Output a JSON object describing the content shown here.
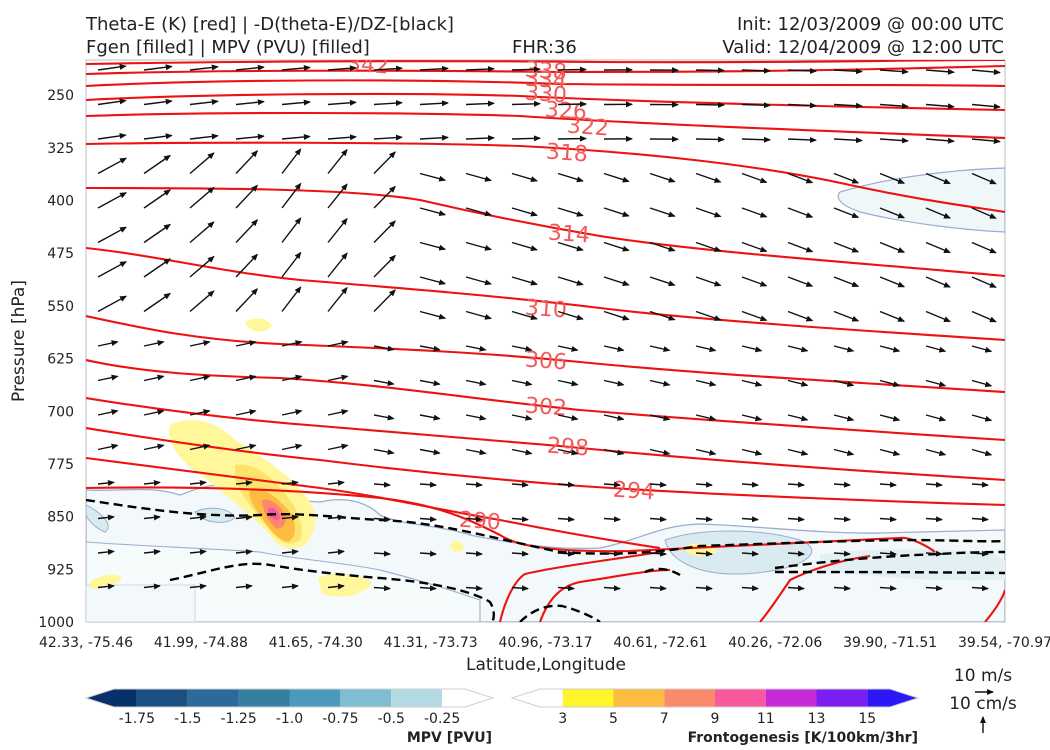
{
  "header": {
    "title_line1": "Theta-E (K) [red] | -D(theta-E)/DZ-[black]",
    "title_line2": "Fgen [filled] | MPV (PVU) [filled]",
    "fhr": "FHR:36",
    "init": "Init: 12/03/2009 @ 00:00 UTC",
    "valid": "Valid: 12/04/2009 @ 12:00 UTC"
  },
  "chart_data": {
    "type": "cross-section",
    "xlabel": "Latitude,Longitude",
    "ylabel": "Pressure [hPa]",
    "ylim": [
      1000,
      200
    ],
    "x_ticks": [
      "42.33, -75.46",
      "41.99, -74.88",
      "41.65, -74.30",
      "41.31, -73.73",
      "40.96, -73.17",
      "40.61, -72.61",
      "40.26, -72.06",
      "39.90, -71.51",
      "39.54, -70.97"
    ],
    "y_ticks": [
      250,
      325,
      400,
      475,
      550,
      625,
      700,
      775,
      850,
      925,
      1000
    ],
    "theta_e_contour_labels": [
      "342",
      "338",
      "334",
      "330",
      "326",
      "322",
      "318",
      "314",
      "310",
      "306",
      "302",
      "298",
      "294",
      "290"
    ],
    "mpv_colorbar": {
      "label": "MPV [PVU]",
      "ticks": [
        "-1.75",
        "-1.5",
        "-1.25",
        "-1.0",
        "-0.75",
        "-0.5",
        "-0.25"
      ],
      "colors": [
        "#08306b",
        "#1c4f82",
        "#2b6a9a",
        "#337f9f",
        "#4a9bbb",
        "#7fbdd0",
        "#b4dbe4",
        "#ffffff"
      ]
    },
    "fgen_colorbar": {
      "label": "Frontogenesis [K/100km/3hr]",
      "ticks": [
        "3",
        "5",
        "7",
        "9",
        "11",
        "13",
        "15"
      ],
      "colors": [
        "#ffffff",
        "#fff52a",
        "#fdbc40",
        "#fb8a6c",
        "#f8589e",
        "#c42bd6",
        "#7b1ef0",
        "#2c18f6"
      ]
    },
    "vector_legend": {
      "horizontal": "10 m/s",
      "vertical": "10 cm/s"
    }
  }
}
